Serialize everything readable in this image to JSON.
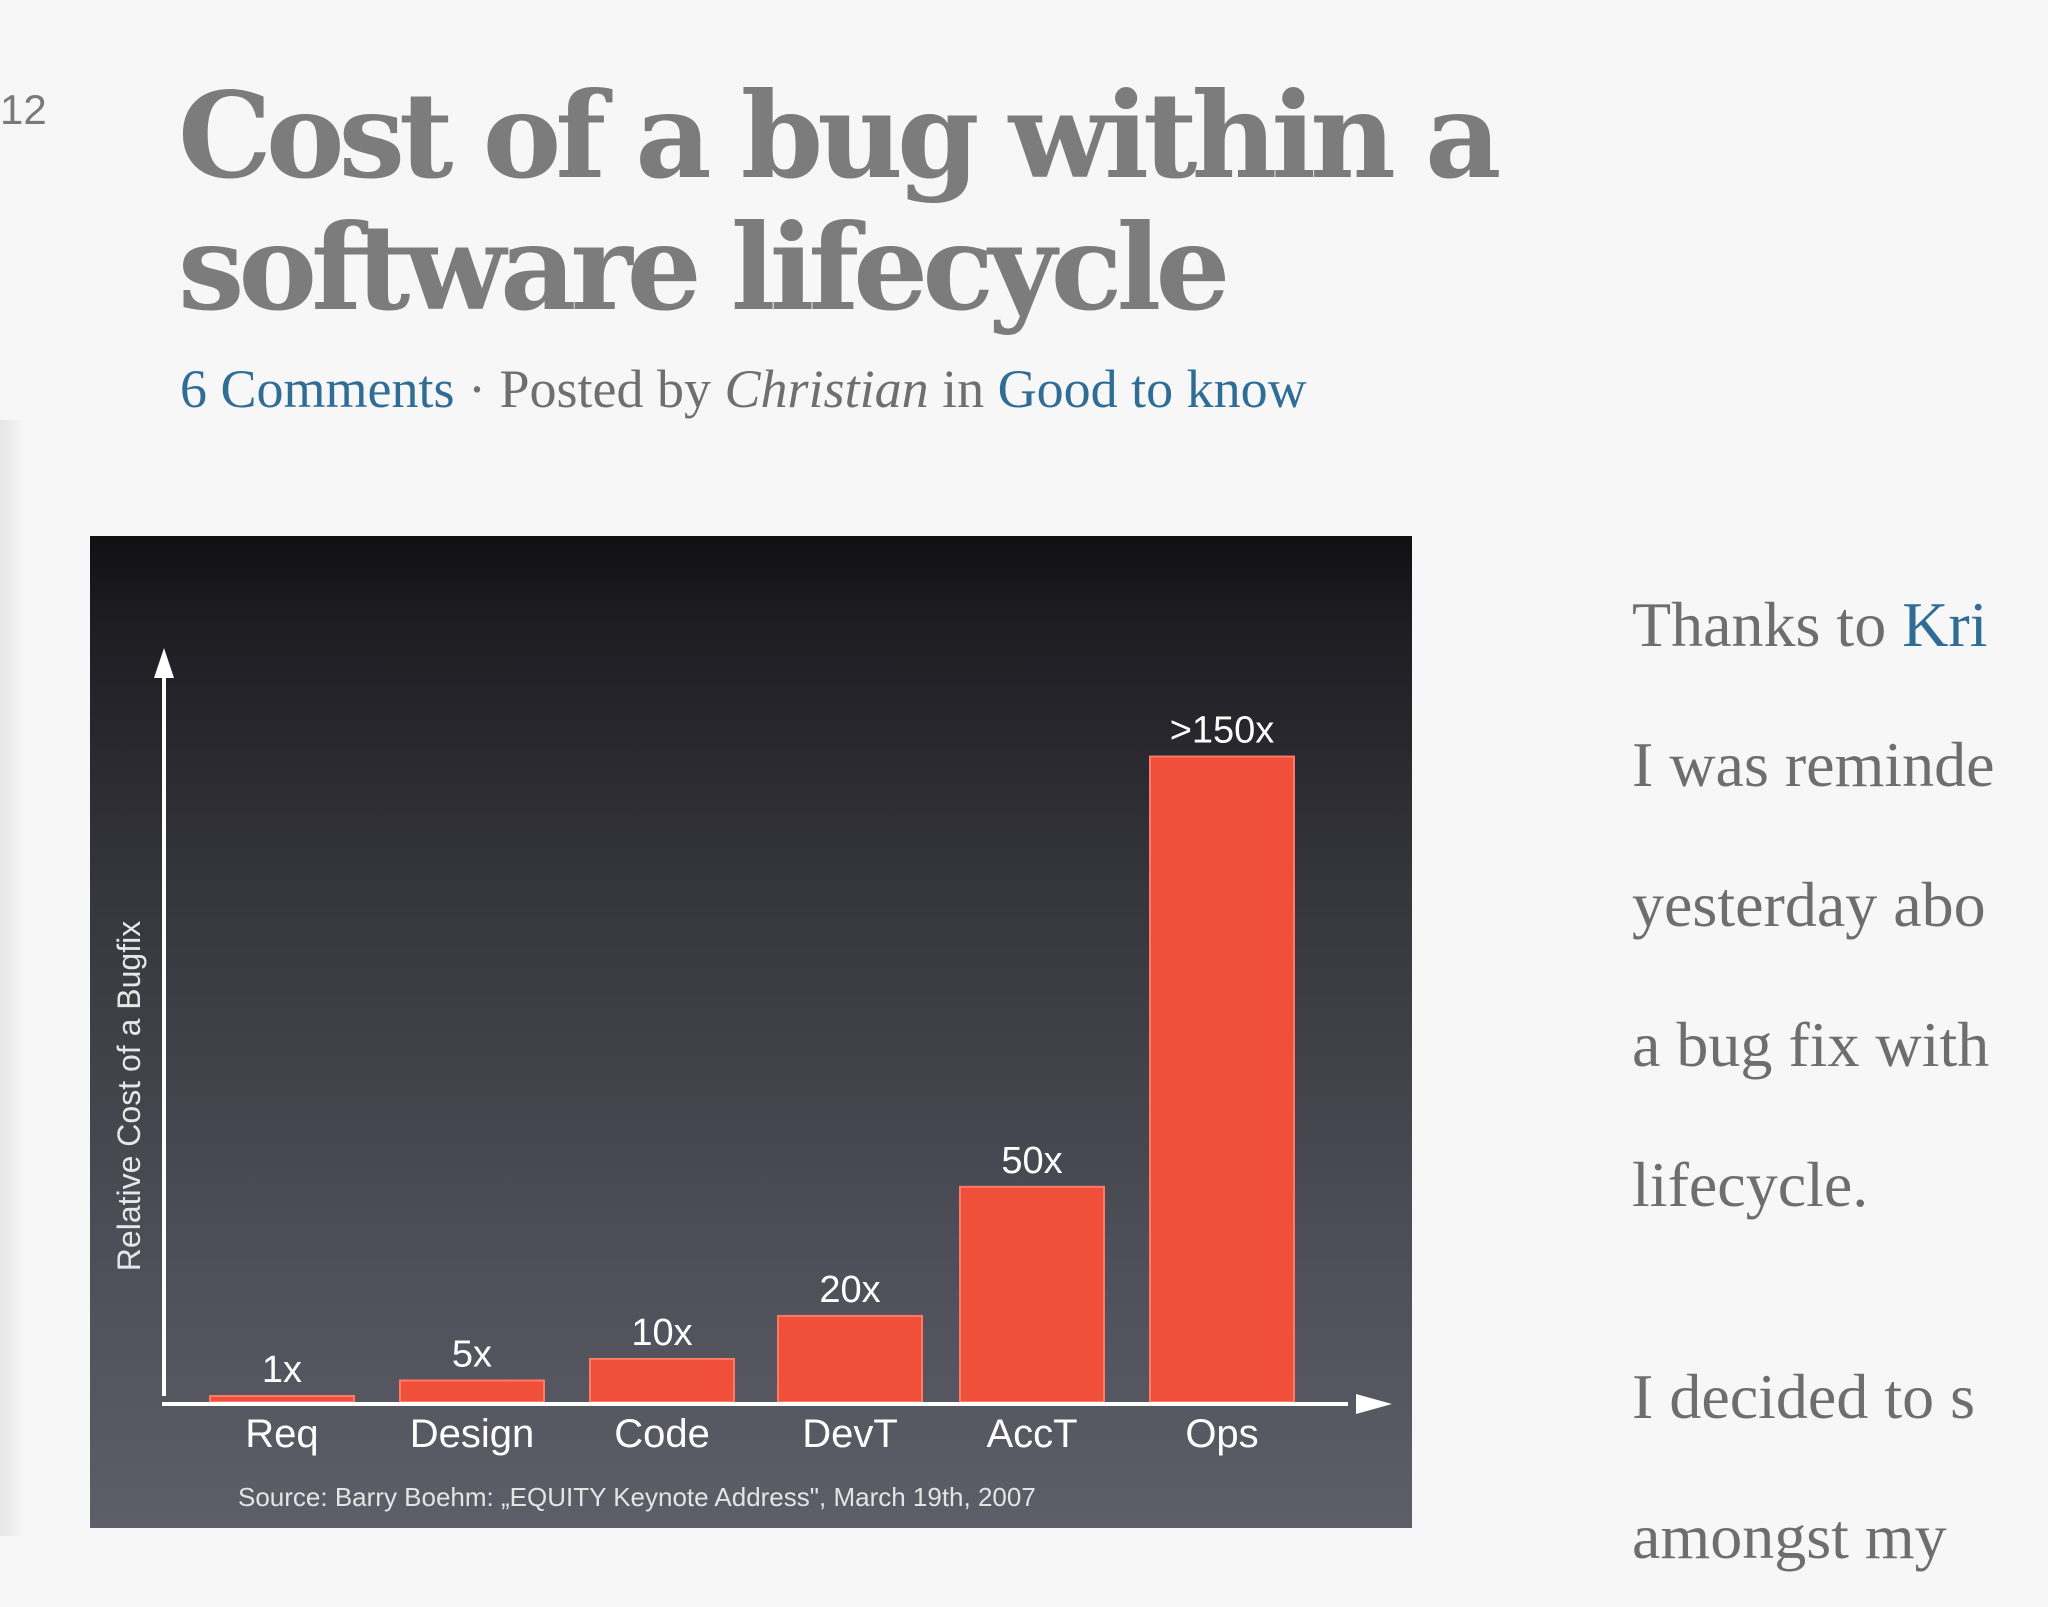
{
  "post": {
    "number": "12",
    "title": "Cost of a bug within a software lifecycle",
    "meta": {
      "comments": "6 Comments",
      "separator": " · Posted by ",
      "author": "Christian",
      "in_text": " in ",
      "category": "Good to know"
    }
  },
  "body": {
    "line1_prefix": "Thanks to ",
    "line1_link": "Kri",
    "line2": "I was reminde",
    "line3": "yesterday abo",
    "line4": "a bug fix with",
    "line5": "lifecycle.",
    "line6": "I decided to s",
    "line7": "amongst my"
  },
  "chart_data": {
    "type": "bar",
    "categories": [
      "Req",
      "Design",
      "Code",
      "DevT",
      "AccT",
      "Ops"
    ],
    "values": [
      1,
      5,
      10,
      20,
      50,
      150
    ],
    "data_labels": [
      "1x",
      "5x",
      "10x",
      "20x",
      "50x",
      ">150x"
    ],
    "ylabel": "Relative Cost of a Bugfix",
    "source": "Source: Barry Boehm: „EQUITY Keynote Address\", March 19th, 2007",
    "bar_color": "#f0503a",
    "axis_color": "#ffffff",
    "ylim": [
      0,
      165
    ],
    "grid": false
  }
}
